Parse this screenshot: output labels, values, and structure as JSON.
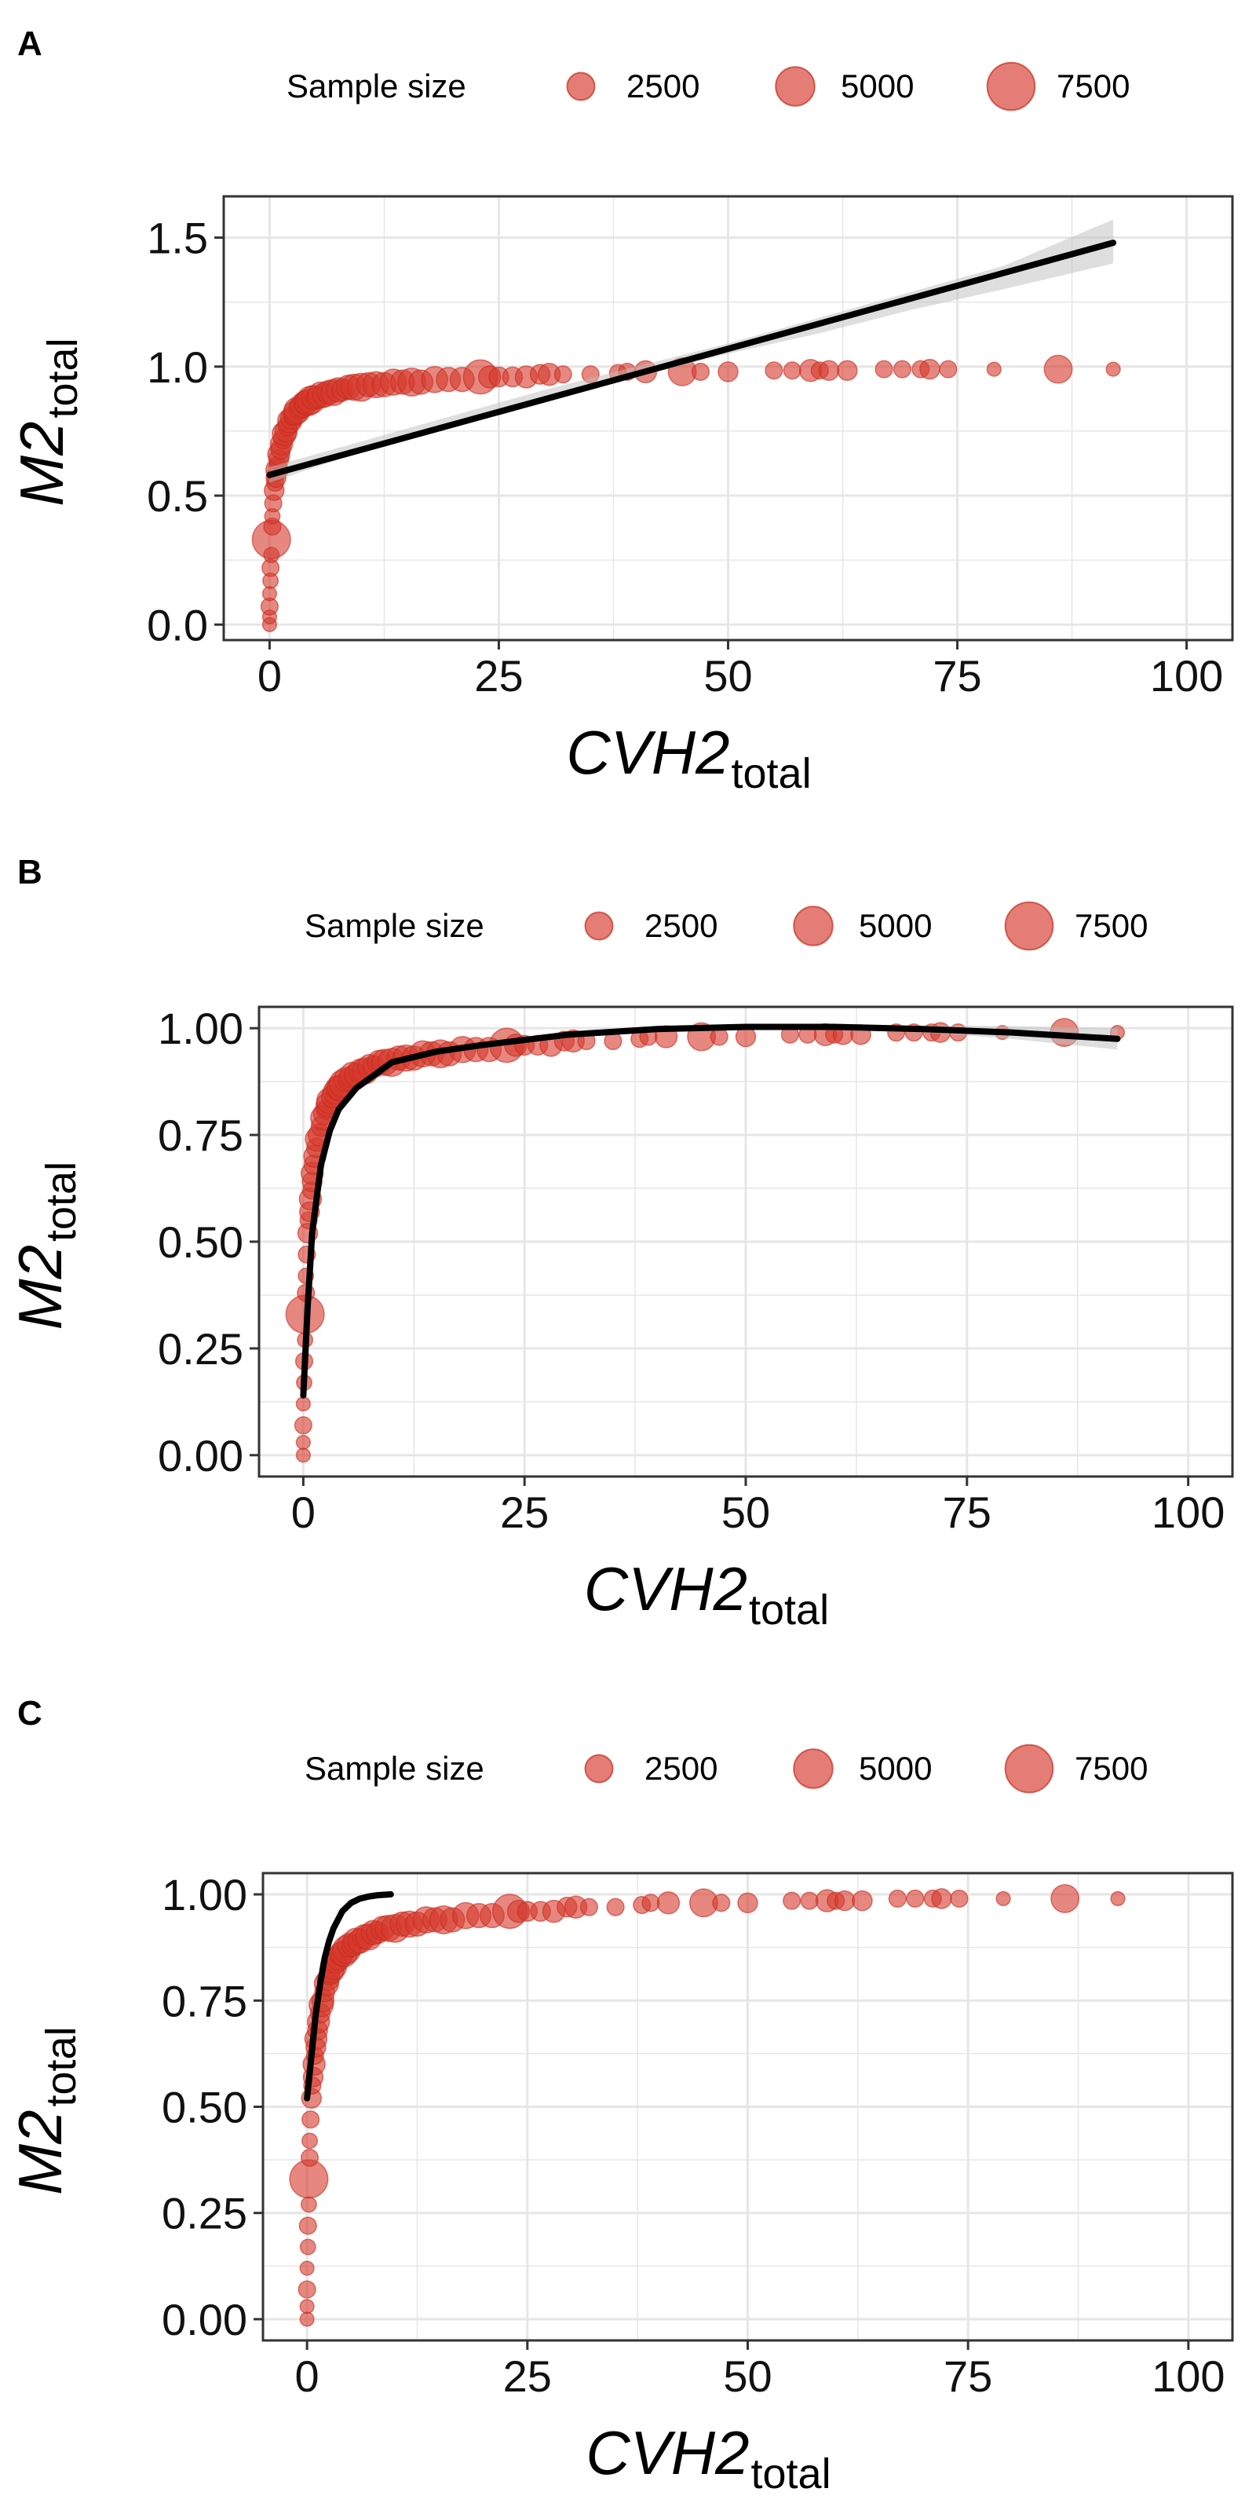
{
  "colors": {
    "point_fill": "#D6382B",
    "point_stroke": "#C62C20",
    "fit_line": "#000000",
    "ci_band": "#BDBDBD",
    "grid": "#E6E6E6",
    "border": "#333333"
  },
  "legend": {
    "title": "Sample size",
    "sizes": [
      2500,
      5000,
      7500
    ],
    "labels": [
      "2500",
      "5000",
      "7500"
    ]
  },
  "axis": {
    "x_label": "CVH2",
    "x_sub": "total",
    "y_label": "M2",
    "y_sub": "total"
  },
  "chart_data": [
    {
      "panel": "A",
      "type": "scatter",
      "fit": "linear",
      "xlim": [
        -5,
        105
      ],
      "ylim": [
        -0.06,
        1.66
      ],
      "x_ticks": [
        0,
        25,
        50,
        75,
        100
      ],
      "x_tick_labels": [
        "0",
        "25",
        "50",
        "75",
        "100"
      ],
      "y_ticks": [
        0.0,
        0.5,
        1.0,
        1.5
      ],
      "y_tick_labels": [
        "0.0",
        "0.5",
        "1.0",
        "1.5"
      ],
      "grid": true,
      "legend_position": "top",
      "fit_line": {
        "x": [
          0,
          92
        ],
        "y": [
          0.58,
          1.48
        ]
      },
      "ci_band": {
        "x": [
          0,
          10,
          20,
          30,
          40,
          50,
          60,
          70,
          80,
          92
        ],
        "lower": [
          0.55,
          0.67,
          0.77,
          0.86,
          0.96,
          1.05,
          1.13,
          1.22,
          1.3,
          1.4
        ],
        "upper": [
          0.61,
          0.71,
          0.81,
          0.91,
          1.0,
          1.09,
          1.19,
          1.29,
          1.39,
          1.57
        ]
      }
    },
    {
      "panel": "B",
      "type": "scatter",
      "fit": "smooth",
      "xlim": [
        -5,
        105
      ],
      "ylim": [
        -0.05,
        1.05
      ],
      "x_ticks": [
        0,
        25,
        50,
        75,
        100
      ],
      "x_tick_labels": [
        "0",
        "25",
        "50",
        "75",
        "100"
      ],
      "y_ticks": [
        0.0,
        0.25,
        0.5,
        0.75,
        1.0
      ],
      "y_tick_labels": [
        "0.00",
        "0.25",
        "0.50",
        "0.75",
        "1.00"
      ],
      "grid": true,
      "legend_position": "top",
      "fit_line": {
        "x": [
          0,
          0.5,
          1,
          2,
          3,
          4,
          6,
          8,
          10,
          15,
          20,
          30,
          40,
          50,
          60,
          70,
          80,
          92
        ],
        "y": [
          0.14,
          0.35,
          0.52,
          0.68,
          0.76,
          0.81,
          0.86,
          0.89,
          0.92,
          0.945,
          0.96,
          0.985,
          0.998,
          1.003,
          1.003,
          0.998,
          0.99,
          0.975
        ]
      },
      "ci_band": {
        "x": [
          60,
          70,
          80,
          92
        ],
        "lower": [
          0.995,
          0.99,
          0.975,
          0.95
        ],
        "upper": [
          1.01,
          1.006,
          1.005,
          1.0
        ]
      }
    },
    {
      "panel": "C",
      "type": "scatter",
      "fit": "saturating",
      "xlim": [
        -5,
        105
      ],
      "ylim": [
        -0.05,
        1.05
      ],
      "x_ticks": [
        0,
        25,
        50,
        75,
        100
      ],
      "x_tick_labels": [
        "0",
        "25",
        "50",
        "75",
        "100"
      ],
      "y_ticks": [
        0.0,
        0.25,
        0.5,
        0.75,
        1.0
      ],
      "y_tick_labels": [
        "0.00",
        "0.25",
        "0.50",
        "0.75",
        "1.00"
      ],
      "grid": true,
      "legend_position": "top",
      "fit_line": {
        "x": [
          0,
          0.5,
          1,
          1.5,
          2,
          2.5,
          3,
          4,
          5,
          6,
          7,
          8,
          9.5
        ],
        "y": [
          0.52,
          0.62,
          0.72,
          0.79,
          0.85,
          0.89,
          0.92,
          0.96,
          0.98,
          0.99,
          0.995,
          0.998,
          1.0
        ]
      },
      "ci_band": null
    }
  ],
  "points": {
    "x": [
      0,
      0,
      0,
      0,
      0.1,
      0.1,
      0.2,
      0.2,
      0.3,
      0.3,
      0.4,
      0.5,
      0.6,
      0.7,
      0.8,
      0.9,
      1.0,
      1.0,
      1.2,
      1.3,
      1.5,
      1.6,
      1.8,
      2.0,
      2.2,
      2.4,
      2.6,
      2.8,
      3.0,
      3.3,
      3.6,
      3.9,
      4.2,
      4.5,
      4.8,
      5.2,
      5.6,
      6.0,
      6.5,
      7.0,
      7.5,
      8.0,
      8.6,
      9.2,
      10.0,
      10.8,
      11.6,
      12.5,
      13.5,
      14.5,
      15.5,
      16.5,
      18.0,
      19.5,
      21.0,
      23.0,
      24.0,
      25.0,
      26.5,
      28.0,
      29.5,
      30.5,
      32.0,
      35.0,
      38.0,
      39.0,
      41.0,
      45.0,
      47.0,
      50.0,
      55.0,
      57.0,
      59.0,
      60.0,
      61.0,
      63.0,
      67.0,
      69.0,
      71.0,
      72.0,
      74.0,
      79.0,
      86.0,
      92.0
    ],
    "y": [
      0.0,
      0.03,
      0.07,
      0.12,
      0.17,
      0.22,
      0.27,
      0.33,
      0.38,
      0.42,
      0.47,
      0.52,
      0.55,
      0.57,
      0.6,
      0.62,
      0.64,
      0.66,
      0.68,
      0.7,
      0.72,
      0.74,
      0.75,
      0.77,
      0.79,
      0.8,
      0.81,
      0.82,
      0.83,
      0.84,
      0.85,
      0.86,
      0.86,
      0.87,
      0.88,
      0.88,
      0.89,
      0.89,
      0.9,
      0.9,
      0.91,
      0.91,
      0.92,
      0.92,
      0.92,
      0.93,
      0.93,
      0.93,
      0.94,
      0.94,
      0.94,
      0.94,
      0.95,
      0.95,
      0.95,
      0.96,
      0.96,
      0.96,
      0.96,
      0.96,
      0.97,
      0.97,
      0.97,
      0.97,
      0.975,
      0.98,
      0.98,
      0.98,
      0.98,
      0.98,
      0.985,
      0.985,
      0.985,
      0.985,
      0.985,
      0.985,
      0.99,
      0.99,
      0.99,
      0.99,
      0.99,
      0.99,
      0.99,
      0.99
    ],
    "size": [
      1000,
      1000,
      1500,
      1000,
      1200,
      1500,
      1200,
      7500,
      1500,
      1200,
      1500,
      2000,
      1500,
      2000,
      2500,
      1500,
      2000,
      2500,
      2000,
      2500,
      2000,
      3000,
      2500,
      2000,
      3000,
      2500,
      2000,
      3000,
      3500,
      2500,
      3000,
      3000,
      3500,
      4000,
      3000,
      2500,
      3500,
      3000,
      3000,
      3500,
      3000,
      2500,
      3000,
      3500,
      4000,
      3000,
      3500,
      3000,
      3500,
      3000,
      4000,
      3000,
      3500,
      3000,
      3000,
      6000,
      2500,
      2000,
      2000,
      2500,
      2000,
      2500,
      1500,
      1500,
      1500,
      1500,
      2500,
      4000,
      1500,
      2000,
      1500,
      1500,
      2500,
      1500,
      2000,
      2000,
      1500,
      1500,
      1500,
      2000,
      1500,
      1000,
      4000,
      1000
    ]
  }
}
